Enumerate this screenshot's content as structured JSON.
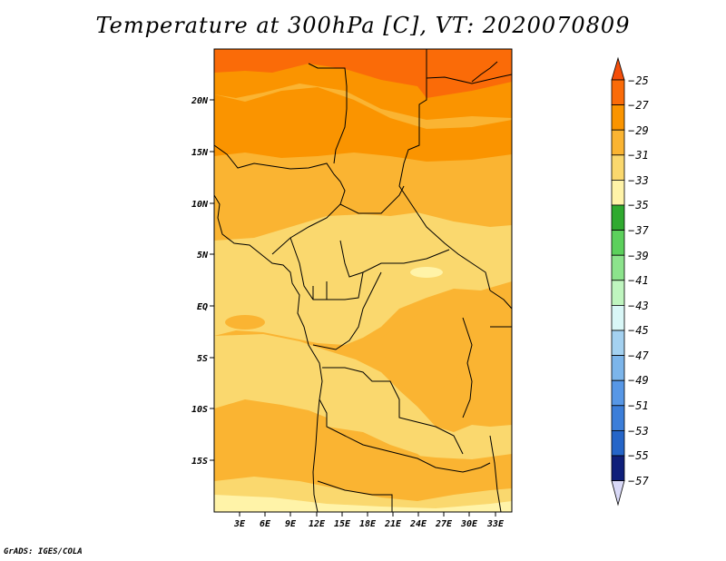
{
  "title": "Temperature at 300hPa [C], VT: 2020070809",
  "credit": "GrADS: IGES/COLA",
  "map": {
    "lat_labels": [
      "20N",
      "15N",
      "10N",
      "5N",
      "EQ",
      "5S",
      "10S",
      "15S"
    ],
    "lon_labels": [
      "3E",
      "6E",
      "9E",
      "12E",
      "15E",
      "18E",
      "21E",
      "24E",
      "27E",
      "30E",
      "33E"
    ]
  },
  "colorbar": {
    "labels": [
      "25",
      "27",
      "29",
      "31",
      "33",
      "35",
      "37",
      "39",
      "41",
      "43",
      "45",
      "47",
      "49",
      "51",
      "53",
      "55",
      "57"
    ],
    "colors": [
      "#f44e0a",
      "#fa6b08",
      "#fa9400",
      "#fab432",
      "#fad86e",
      "#fff3a8",
      "#2faa2f",
      "#5cd05c",
      "#8ce38c",
      "#bff5bf",
      "#d9f7f7",
      "#a4d1f0",
      "#7cb5ea",
      "#5797e6",
      "#3c7ed9",
      "#2565c8",
      "#1449a8",
      "#0f1f7a",
      "#d9d9f7"
    ]
  }
}
